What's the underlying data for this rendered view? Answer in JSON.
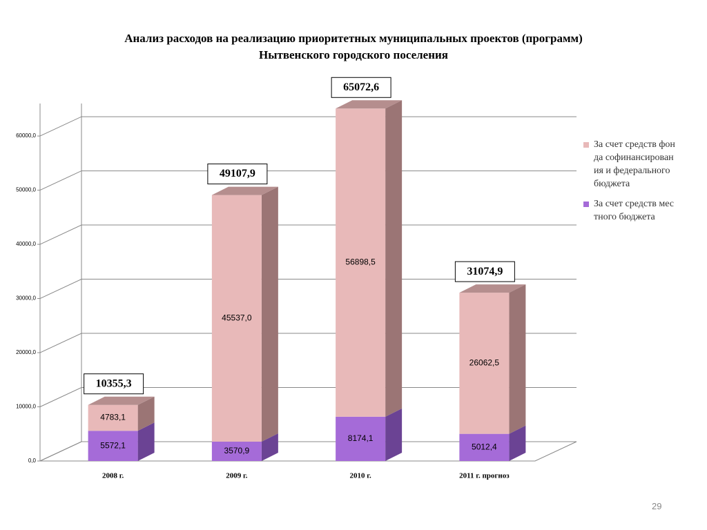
{
  "chart_data": {
    "type": "bar3d_stacked",
    "title": [
      "Анализ расходов на реализацию приоритетных  муниципальных проектов (программ)",
      "Нытвенского городского поселения"
    ],
    "categories": [
      "2008 г.",
      "2009 г.",
      "2010 г.",
      "2011 г. прогноз"
    ],
    "series": [
      {
        "name": "За счет средств местного бюджета",
        "color": "#a56bd8",
        "side_color": "#6b4394",
        "top_color": "#8a5ab8",
        "values": [
          5572.1,
          3570.9,
          8174.1,
          5012.4
        ],
        "value_labels": [
          "5572,1",
          "3570,9",
          "8174,1",
          "5012,4"
        ]
      },
      {
        "name": "За счет средств фонда софинансирования и федерального бюджета",
        "color": "#e8b9b9",
        "side_color": "#9b7575",
        "top_color": "#b58e8e",
        "values": [
          4783.1,
          45537.0,
          56898.5,
          26062.5
        ],
        "value_labels": [
          "4783,1",
          "45537,0",
          "56898,5",
          "26062,5"
        ]
      }
    ],
    "totals": [
      10355.3,
      49107.9,
      65072.6,
      31074.9
    ],
    "total_labels": [
      "10355,3",
      "49107,9",
      "65072,6",
      "31074,9"
    ],
    "ylim": [
      0,
      66000
    ],
    "yticks": [
      {
        "value": 0,
        "label": "0,0"
      },
      {
        "value": 10000,
        "label": "10000,0"
      },
      {
        "value": 20000,
        "label": "20000,0"
      },
      {
        "value": 30000,
        "label": "30000,0"
      },
      {
        "value": 40000,
        "label": "40000,0"
      },
      {
        "value": 50000,
        "label": "50000,0"
      },
      {
        "value": 60000,
        "label": "60000,0"
      }
    ],
    "grid": true
  },
  "page_number": "29"
}
